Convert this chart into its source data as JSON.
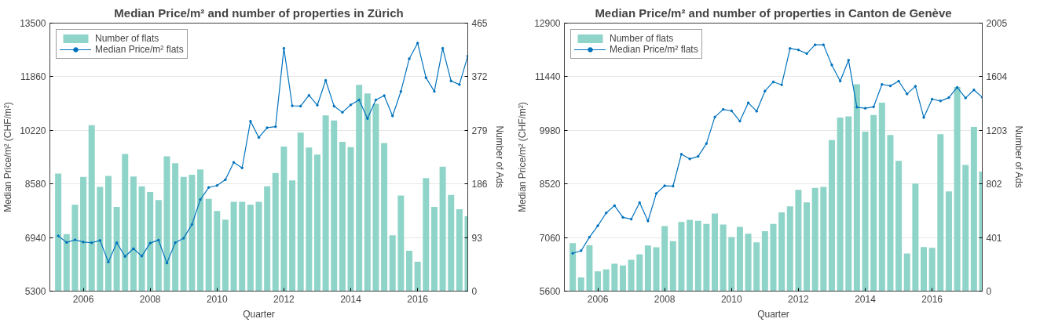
{
  "chart_data": [
    {
      "type": "bar",
      "title": "Median Price/m² and number of properties in Zürich",
      "xlabel": "Quarter",
      "ylabel": "Median Price/m² (CHF/m²)",
      "y2label": "Number of Ads",
      "x": [
        2005.25,
        2005.5,
        2005.75,
        2006,
        2006.25,
        2006.5,
        2006.75,
        2007,
        2007.25,
        2007.5,
        2007.75,
        2008,
        2008.25,
        2008.5,
        2008.75,
        2009,
        2009.25,
        2009.5,
        2009.75,
        2010,
        2010.25,
        2010.5,
        2010.75,
        2011,
        2011.25,
        2011.5,
        2011.75,
        2012,
        2012.25,
        2012.5,
        2012.75,
        2013,
        2013.25,
        2013.5,
        2013.75,
        2014,
        2014.25,
        2014.5,
        2014.75,
        2015,
        2015.25,
        2015.5,
        2015.75,
        2016,
        2016.25,
        2016.5,
        2016.75,
        2017,
        2017.25,
        2017.5
      ],
      "series": [
        {
          "name": "Number of flats",
          "axis": "y2",
          "color": "#8fd4c8",
          "values": [
            204,
            99,
            150,
            198,
            288,
            181,
            200,
            146,
            238,
            199,
            182,
            172,
            158,
            234,
            222,
            198,
            202,
            211,
            160,
            139,
            124,
            155,
            155,
            150,
            155,
            182,
            205,
            251,
            192,
            275,
            249,
            237,
            305,
            296,
            259,
            250,
            358,
            343,
            325,
            257,
            97,
            166,
            70,
            51,
            196,
            146,
            216,
            167,
            142,
            130
          ]
        },
        {
          "name": "Median Price/m² flats",
          "type": "line",
          "color": "#0072bd",
          "values": [
            6990,
            6790,
            6870,
            6800,
            6780,
            6850,
            6190,
            6780,
            6360,
            6600,
            6370,
            6770,
            6860,
            6160,
            6780,
            6920,
            7340,
            8100,
            8470,
            8530,
            8710,
            9240,
            9070,
            10500,
            10000,
            10300,
            10330,
            12730,
            10970,
            10960,
            11290,
            10990,
            11750,
            10960,
            10770,
            11000,
            11150,
            10580,
            11150,
            11280,
            10660,
            11410,
            12410,
            12890,
            11830,
            11410,
            12730,
            11730,
            11620,
            12490
          ]
        }
      ],
      "xlim": [
        2005,
        2017.5
      ],
      "xticks": [
        2006,
        2008,
        2010,
        2012,
        2014,
        2016
      ],
      "ylim": [
        5300,
        13500
      ],
      "yticks": [
        5300,
        6940,
        8580,
        10220,
        11860,
        13500
      ],
      "y2lim": [
        0,
        465
      ],
      "y2ticks": [
        0,
        93,
        186,
        279,
        372,
        465
      ],
      "grid": "y",
      "legend": "top left",
      "marker": "circle",
      "line_style": "solid"
    },
    {
      "type": "bar",
      "title": "Median Price/m² and number of properties in Canton de Genève",
      "xlabel": "Quarter",
      "ylabel": "Median Price/m² (CHF/m²)",
      "y2label": "Number of Ads",
      "x": [
        2005.25,
        2005.5,
        2005.75,
        2006,
        2006.25,
        2006.5,
        2006.75,
        2007,
        2007.25,
        2007.5,
        2007.75,
        2008,
        2008.25,
        2008.5,
        2008.75,
        2009,
        2009.25,
        2009.5,
        2009.75,
        2010,
        2010.25,
        2010.5,
        2010.75,
        2011,
        2011.25,
        2011.5,
        2011.75,
        2012,
        2012.25,
        2012.5,
        2012.75,
        2013,
        2013.25,
        2013.5,
        2013.75,
        2014,
        2014.25,
        2014.5,
        2014.75,
        2015,
        2015.25,
        2015.5,
        2015.75,
        2016,
        2016.25,
        2016.5,
        2016.75,
        2017,
        2017.25,
        2017.5
      ],
      "series": [
        {
          "name": "Number of flats",
          "axis": "y2",
          "color": "#8fd4c8",
          "values": [
            359,
            102,
            343,
            148,
            163,
            205,
            192,
            234,
            276,
            342,
            328,
            487,
            374,
            518,
            533,
            526,
            503,
            581,
            499,
            405,
            480,
            430,
            365,
            449,
            503,
            589,
            635,
            758,
            664,
            773,
            779,
            1130,
            1299,
            1307,
            1548,
            1193,
            1318,
            1410,
            1168,
            975,
            282,
            804,
            330,
            324,
            1174,
            746,
            1527,
            944,
            1228,
            894
          ]
        },
        {
          "name": "Median Price/m² flats",
          "type": "line",
          "color": "#0072bd",
          "values": [
            6630,
            6700,
            7070,
            7380,
            7730,
            7930,
            7610,
            7560,
            8010,
            7510,
            8260,
            8470,
            8460,
            9330,
            9200,
            9270,
            9620,
            10340,
            10550,
            10510,
            10230,
            10730,
            10500,
            11050,
            11300,
            11220,
            12210,
            12170,
            12070,
            12310,
            12310,
            11760,
            11320,
            11890,
            10610,
            10580,
            10620,
            11230,
            11190,
            11320,
            10970,
            11180,
            10330,
            10830,
            10780,
            10870,
            11150,
            10860,
            11080,
            10880
          ]
        }
      ],
      "xlim": [
        2005,
        2017.5
      ],
      "xticks": [
        2006,
        2008,
        2010,
        2012,
        2014,
        2016
      ],
      "ylim": [
        5600,
        12900
      ],
      "yticks": [
        5600,
        7060,
        8520,
        9980,
        11440,
        12900
      ],
      "y2lim": [
        0,
        2005
      ],
      "y2ticks": [
        0,
        401,
        802,
        1203,
        1604,
        2005
      ],
      "grid": "y",
      "legend": "top left",
      "marker": "circle",
      "line_style": "solid"
    }
  ]
}
